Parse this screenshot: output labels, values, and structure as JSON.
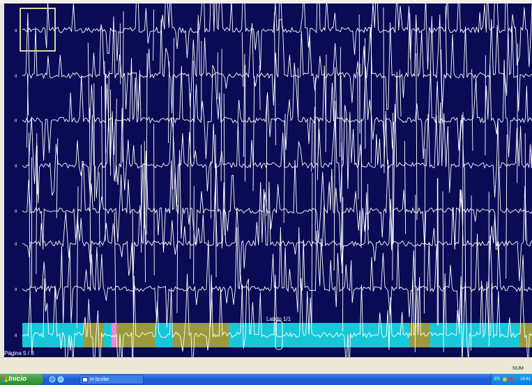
{
  "viewer": {
    "page_label": "Página 5 / 8",
    "beat_label": "Latido 1/1",
    "lead_labels": [
      "II",
      "II",
      "II",
      "II",
      "II",
      "II",
      "II",
      "II"
    ],
    "colors": {
      "background": "#0a0a55",
      "trace": "#ffffff",
      "strip_normal": "#19c8d8",
      "strip_event": "#9a9a3c",
      "strip_marker": "#e88ad8",
      "selection_box": "#d8d8a0"
    },
    "strip_segments": [
      {
        "kind": "normal",
        "from": 0.0,
        "to": 0.12
      },
      {
        "kind": "event",
        "from": 0.12,
        "to": 0.16
      },
      {
        "kind": "normal",
        "from": 0.16,
        "to": 0.175
      },
      {
        "kind": "marker",
        "from": 0.175,
        "to": 0.185
      },
      {
        "kind": "event",
        "from": 0.185,
        "to": 0.26
      },
      {
        "kind": "normal",
        "from": 0.26,
        "to": 0.295
      },
      {
        "kind": "event",
        "from": 0.295,
        "to": 0.405
      },
      {
        "kind": "normal",
        "from": 0.405,
        "to": 0.76
      },
      {
        "kind": "event",
        "from": 0.76,
        "to": 0.8
      },
      {
        "kind": "normal",
        "from": 0.8,
        "to": 0.975
      },
      {
        "kind": "event",
        "from": 0.975,
        "to": 1.0
      }
    ]
  },
  "statusbar": {
    "num": "NUM"
  },
  "taskbar": {
    "start_label": "Inicio",
    "task_label": "H-Scribe",
    "tray_lang": "ES",
    "clock": "19:41"
  }
}
